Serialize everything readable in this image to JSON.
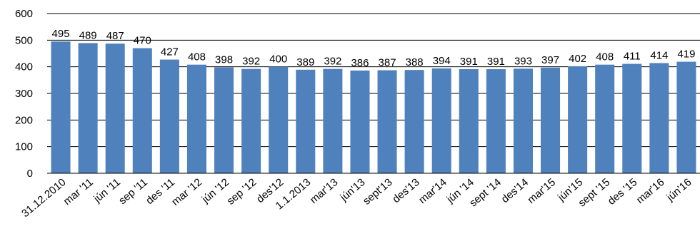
{
  "chart_data": {
    "type": "bar",
    "title": "",
    "xlabel": "",
    "ylabel": "",
    "ylim": [
      0,
      600
    ],
    "yticks": [
      0,
      100,
      200,
      300,
      400,
      500,
      600
    ],
    "grid": true,
    "bar_color": "#4F81BD",
    "categories": [
      "31.12.2010",
      "mar '11",
      "jún '11",
      "sep '11",
      "des '11",
      "mar '12",
      "jún '12",
      "sep '12",
      "des'12",
      "1.1.2013",
      "mar'13",
      "jún'13",
      "sept'13",
      "des'13",
      "mar'14",
      "jún '14",
      "sept '14",
      "des'14",
      "mar'15",
      "jún'15",
      "sept '15",
      "des '15",
      "mar'16",
      "jún'16"
    ],
    "values": [
      495,
      489,
      487,
      470,
      427,
      408,
      398,
      392,
      400,
      389,
      392,
      386,
      387,
      388,
      394,
      391,
      391,
      393,
      397,
      402,
      408,
      411,
      414,
      419
    ]
  }
}
